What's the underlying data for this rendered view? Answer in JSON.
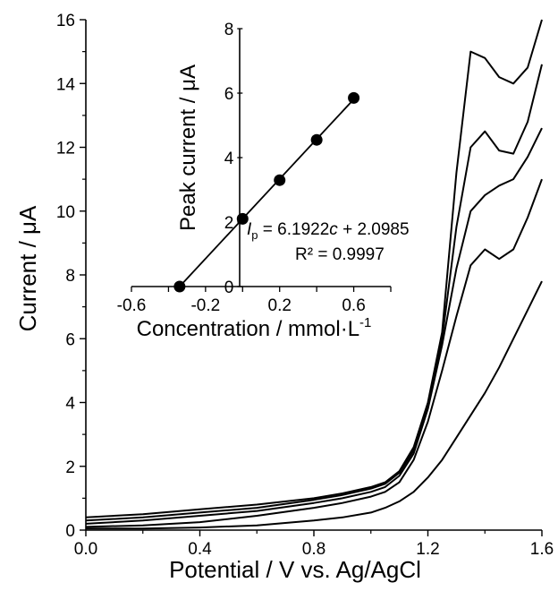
{
  "chart_data": [
    {
      "type": "line",
      "xlabel": "Potential / V vs. Ag/AgCl",
      "ylabel": "Current / μA",
      "xlim": [
        0.0,
        1.6
      ],
      "ylim": [
        0,
        16
      ],
      "xticks": [
        "0.0",
        "0.4",
        "0.8",
        "1.2",
        "1.6"
      ],
      "yticks": [
        "0",
        "2",
        "4",
        "6",
        "8",
        "10",
        "12",
        "14",
        "16"
      ],
      "grid": false,
      "series": [
        {
          "x": [
            0.0,
            0.2,
            0.4,
            0.6,
            0.8,
            0.9,
            1.0,
            1.05,
            1.1,
            1.15,
            1.2,
            1.25,
            1.3,
            1.35,
            1.4,
            1.45,
            1.5,
            1.55,
            1.6
          ],
          "y": [
            0.05,
            0.05,
            0.08,
            0.15,
            0.3,
            0.4,
            0.55,
            0.7,
            0.9,
            1.2,
            1.65,
            2.2,
            2.9,
            3.6,
            4.3,
            5.1,
            6.0,
            6.9,
            7.8
          ]
        },
        {
          "x": [
            0.0,
            0.2,
            0.4,
            0.6,
            0.8,
            0.9,
            1.0,
            1.05,
            1.1,
            1.15,
            1.2,
            1.25,
            1.3,
            1.35,
            1.4,
            1.45,
            1.5,
            1.55,
            1.6
          ],
          "y": [
            0.1,
            0.15,
            0.25,
            0.45,
            0.7,
            0.85,
            1.05,
            1.2,
            1.5,
            2.2,
            3.4,
            5.0,
            6.7,
            8.3,
            8.8,
            8.5,
            8.8,
            9.8,
            11.0
          ]
        },
        {
          "x": [
            0.0,
            0.2,
            0.4,
            0.6,
            0.8,
            0.9,
            1.0,
            1.05,
            1.1,
            1.15,
            1.2,
            1.25,
            1.3,
            1.35,
            1.4,
            1.45,
            1.5,
            1.55,
            1.6
          ],
          "y": [
            0.2,
            0.3,
            0.45,
            0.6,
            0.85,
            1.0,
            1.2,
            1.35,
            1.7,
            2.4,
            3.8,
            5.8,
            8.2,
            10.0,
            10.5,
            10.8,
            11.0,
            11.7,
            12.6
          ]
        },
        {
          "x": [
            0.0,
            0.2,
            0.4,
            0.6,
            0.8,
            0.9,
            1.0,
            1.05,
            1.1,
            1.15,
            1.2,
            1.25,
            1.3,
            1.35,
            1.4,
            1.45,
            1.5,
            1.55,
            1.6
          ],
          "y": [
            0.3,
            0.4,
            0.55,
            0.7,
            0.95,
            1.1,
            1.3,
            1.45,
            1.8,
            2.5,
            3.9,
            6.0,
            9.5,
            12.0,
            12.5,
            11.9,
            11.8,
            12.8,
            14.6
          ]
        },
        {
          "x": [
            0.0,
            0.2,
            0.4,
            0.6,
            0.8,
            0.9,
            1.0,
            1.05,
            1.1,
            1.15,
            1.2,
            1.25,
            1.3,
            1.35,
            1.4,
            1.45,
            1.5,
            1.55,
            1.6
          ],
          "y": [
            0.4,
            0.5,
            0.65,
            0.8,
            1.0,
            1.15,
            1.35,
            1.5,
            1.85,
            2.6,
            4.0,
            6.2,
            11.2,
            15.0,
            14.8,
            14.2,
            14.0,
            14.5,
            16.0
          ]
        }
      ]
    },
    {
      "type": "scatter",
      "xlabel": "Concentration  / mmol·L",
      "xlabel_sup": "-1",
      "ylabel": "Peak current / μA",
      "xlim": [
        -0.6,
        0.8
      ],
      "ylim": [
        0,
        8
      ],
      "xticks": [
        "-0.6",
        "-0.2",
        "0.2",
        "0.6"
      ],
      "yticks": [
        "0",
        "2",
        "4",
        "6",
        "8"
      ],
      "grid": false,
      "points": [
        {
          "x": -0.34,
          "y": 0.0
        },
        {
          "x": 0.0,
          "y": 2.1
        },
        {
          "x": 0.2,
          "y": 3.3
        },
        {
          "x": 0.4,
          "y": 4.55
        },
        {
          "x": 0.6,
          "y": 5.85
        }
      ],
      "fit": {
        "x": [
          -0.34,
          0.6
        ],
        "y": [
          0.0,
          5.81
        ]
      },
      "annotation": {
        "eq_prefix": "I",
        "eq_sub": "p",
        "eq_mid": " = 6.1922",
        "eq_var": "c",
        "eq_tail": " + 2.0985",
        "r2": "R² = 0.9997"
      }
    }
  ]
}
